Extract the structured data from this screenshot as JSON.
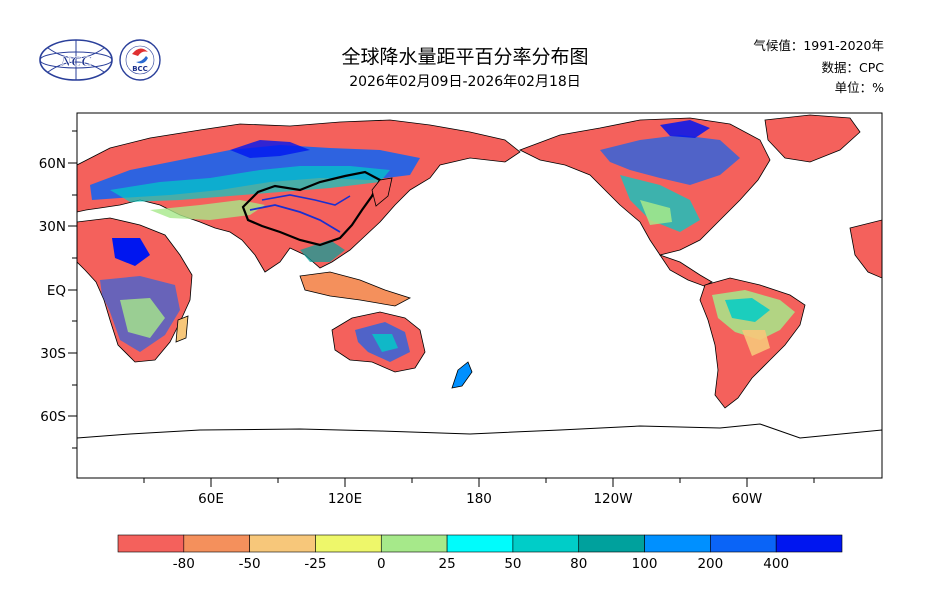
{
  "title": "全球降水量距平百分率分布图",
  "subtitle": "2026年02月09日-2026年02月18日",
  "meta": {
    "climate": "气候值：1991-2020年",
    "source": "数据：CPC",
    "unit": "单位：%"
  },
  "logos": {
    "ncc_text": "NCC",
    "bcc_text": "BCC"
  },
  "map": {
    "projection": "equirectangular",
    "lon_range": [
      0,
      360
    ],
    "lat_range": [
      -90,
      90
    ],
    "central_lon": 180,
    "lat_labels": [
      "60N",
      "30N",
      "EQ",
      "30S",
      "60S"
    ],
    "lon_labels": [
      "60E",
      "120E",
      "180",
      "120W",
      "60W"
    ],
    "highlight_region": "China"
  },
  "colorbar": {
    "colors": [
      "#f4615c",
      "#f4905c",
      "#f7c77a",
      "#eef76a",
      "#a6e98a",
      "#00fcfc",
      "#00cdc8",
      "#00a19d",
      "#0090ff",
      "#0a64f7",
      "#0016f0"
    ],
    "labels": [
      "-80",
      "-50",
      "-25",
      "0",
      "25",
      "50",
      "80",
      "100",
      "200",
      "400"
    ]
  }
}
